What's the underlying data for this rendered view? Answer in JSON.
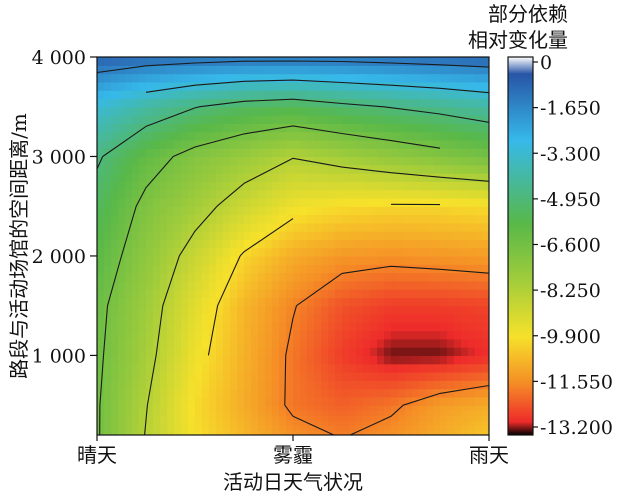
{
  "chart_data": {
    "type": "heatmap",
    "title": "",
    "xlabel": "活动日天气状况",
    "ylabel": "路段与活动场馆的空间距离/m",
    "x_categories": [
      "晴天",
      "雾霾",
      "雨天"
    ],
    "y_ticks": [
      {
        "value": 1000,
        "label": "1 000"
      },
      {
        "value": 2000,
        "label": "2 000"
      },
      {
        "value": 3000,
        "label": "3 000"
      },
      {
        "value": 4000,
        "label": "4 000"
      }
    ],
    "ylim": [
      200,
      4000
    ],
    "grid": false,
    "colorbar": {
      "title": [
        "部分依赖",
        "相对变化量"
      ],
      "placement": "right",
      "range": [
        -13.2,
        0
      ],
      "ticks": [
        {
          "value": 0,
          "label": "0"
        },
        {
          "value": -1.65,
          "label": "-1.650"
        },
        {
          "value": -3.3,
          "label": "-3.300"
        },
        {
          "value": -4.95,
          "label": "-4.950"
        },
        {
          "value": -6.6,
          "label": "-6.600"
        },
        {
          "value": -8.25,
          "label": "-8.250"
        },
        {
          "value": -9.9,
          "label": "-9.900"
        },
        {
          "value": -11.55,
          "label": "-11.550"
        },
        {
          "value": -13.2,
          "label": "-13.200"
        }
      ],
      "colors": [
        "#ffffff",
        "#2855a6",
        "#36b9ea",
        "#58b849",
        "#9ccb3c",
        "#f6e12b",
        "#f58f26",
        "#ee2b2a",
        "#000000"
      ]
    },
    "contour_levels": [
      -1.65,
      -3.3,
      -4.95,
      -6.6,
      -8.25,
      -9.9,
      -11.55
    ],
    "grid_x": [
      0,
      0.25,
      0.5,
      0.75,
      1,
      1.25,
      1.5,
      1.75,
      2
    ],
    "grid_y": [
      200,
      500,
      1000,
      1500,
      2000,
      2500,
      3000,
      3500,
      4000
    ],
    "z": [
      [
        -6.5,
        -8.3,
        -9.8,
        -10.6,
        -11.3,
        -11.6,
        -11.3,
        -10.8,
        -10.3
      ],
      [
        -6.5,
        -8.2,
        -9.9,
        -10.8,
        -11.7,
        -12.0,
        -11.7,
        -11.1,
        -10.8
      ],
      [
        -6.4,
        -7.9,
        -9.6,
        -10.7,
        -11.7,
        -12.5,
        -13.0,
        -13.0,
        -12.7
      ],
      [
        -6.3,
        -7.7,
        -9.3,
        -10.6,
        -11.5,
        -12.2,
        -12.5,
        -12.5,
        -12.4
      ],
      [
        -5.9,
        -7.3,
        -8.7,
        -10.0,
        -10.8,
        -11.2,
        -11.3,
        -11.2,
        -11.1
      ],
      [
        -5.4,
        -6.9,
        -7.8,
        -8.8,
        -9.6,
        -9.9,
        -10.0,
        -10.0,
        -9.9
      ],
      [
        -4.8,
        -6.1,
        -7.0,
        -7.6,
        -8.2,
        -7.8,
        -7.4,
        -7.0,
        -6.6
      ],
      [
        -3.3,
        -4.2,
        -4.9,
        -5.4,
        -5.6,
        -5.2,
        -4.9,
        -4.6,
        -4.2
      ],
      [
        -0.9,
        -1.1,
        -1.2,
        -1.3,
        -1.3,
        -1.3,
        -1.2,
        -1.1,
        -1.0
      ]
    ]
  }
}
